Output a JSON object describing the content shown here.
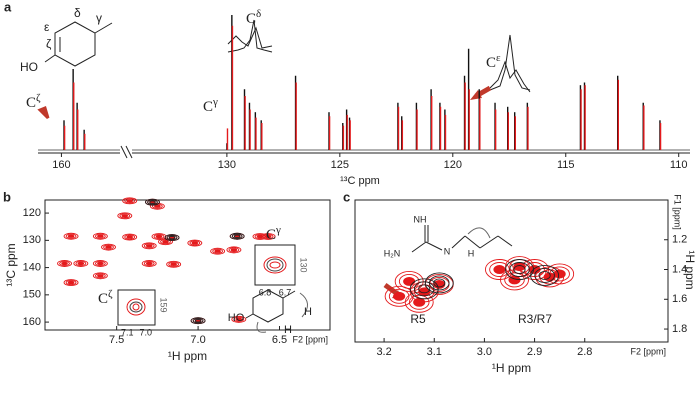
{
  "chart_data": [
    {
      "type": "spectrum",
      "panel": "a",
      "x_label": "¹³C ppm",
      "x_segments": [
        {
          "xlim": [
            161,
            157.5
          ],
          "xticks": [
            160
          ]
        },
        {
          "xlim": [
            134.2,
            109.5
          ],
          "xticks": [
            130,
            125,
            120,
            115,
            110
          ]
        }
      ],
      "ylim": [
        0,
        100
      ],
      "x": [
        159.89,
        159.5,
        159.33,
        159.03,
        130.0,
        129.78,
        129.22,
        129.0,
        128.74,
        128.48,
        126.96,
        125.48,
        124.87,
        124.7,
        124.57,
        122.43,
        122.26,
        121.61,
        120.96,
        120.57,
        120.35,
        119.48,
        119.3,
        118.83,
        118.13,
        117.57,
        117.26,
        116.7,
        114.35,
        114.17,
        112.7,
        111.57,
        110.83
      ],
      "series": [
        {
          "color": "#111111",
          "values": [
            22,
            60,
            35,
            15,
            5,
            100,
            45,
            35,
            28,
            22,
            55,
            28,
            20,
            30,
            24,
            35,
            25,
            35,
            45,
            35,
            30,
            55,
            75,
            45,
            35,
            32,
            28,
            35,
            48,
            50,
            55,
            35,
            22
          ]
        },
        {
          "color": "#e41a1c",
          "values": [
            18,
            50,
            30,
            12,
            16,
            92,
            40,
            30,
            24,
            20,
            50,
            25,
            18,
            26,
            22,
            32,
            22,
            30,
            40,
            32,
            26,
            50,
            45,
            38,
            30,
            28,
            25,
            32,
            45,
            48,
            52,
            33,
            20
          ]
        }
      ],
      "annotations": [
        {
          "base": "C",
          "sup": "δ"
        },
        {
          "base": "C",
          "sup": "γ"
        },
        {
          "base": "C",
          "sup": "ζ"
        },
        {
          "base": "C",
          "sup": "ε"
        }
      ],
      "structure_labels": [
        "ε",
        "δ",
        "γ",
        "ζ",
        "HO"
      ]
    },
    {
      "type": "contour",
      "panel": "b",
      "x_label": "¹H ppm",
      "y_label": "¹³C ppm",
      "x_unit_label": "F2 [ppm]",
      "xlim": [
        7.94,
        6.19
      ],
      "ylim": [
        115.2,
        162.9
      ],
      "xticks": [
        7.5,
        {
          "value": 7,
          "label": "7.0"
        },
        6.5
      ],
      "yticks": [
        120,
        130,
        140,
        150,
        160
      ],
      "series": [
        {
          "color": "#e41a1c",
          "x": [
            7.42,
            7.28,
            7.25,
            7.45,
            7.78,
            7.6,
            7.42,
            7.24,
            7.16,
            6.76,
            6.62,
            6.57,
            7.2,
            7.02,
            7.55,
            7.3,
            6.78,
            6.88,
            7.82,
            7.72,
            7.6,
            7.3,
            7.15,
            7.6,
            7.78,
            7.0,
            6.75
          ],
          "y": [
            115.5,
            116,
            117.5,
            121,
            128.5,
            128.5,
            128.8,
            128.6,
            129,
            128.5,
            128.6,
            128.6,
            130.5,
            131,
            132.5,
            132,
            133.5,
            134,
            138.5,
            138.5,
            138.5,
            138.5,
            138.8,
            143,
            145.5,
            159.5,
            159
          ]
        },
        {
          "color": "#222222",
          "x": [
            7.28,
            7.16,
            6.76,
            7.0
          ],
          "y": [
            116,
            129,
            128.5,
            159.5
          ]
        }
      ],
      "insets": [
        {
          "label": {
            "base": "C",
            "sup": "γ"
          },
          "xticks": [
            6.8,
            6.7
          ],
          "yticks": [
            130
          ]
        },
        {
          "label": {
            "base": "C",
            "sup": "ζ"
          },
          "xticks": [
            7.1,
            {
              "value": 7,
              "label": "7.0"
            }
          ],
          "yticks": [
            159
          ]
        }
      ],
      "annotations": [
        "HO",
        "H",
        "H"
      ]
    },
    {
      "type": "contour",
      "panel": "c",
      "x_label": "¹H ppm",
      "y_label": "¹H ppm",
      "x_unit_label": "F2 [ppm]",
      "y_unit_label": "F1 [ppm]",
      "xlim": [
        3.258,
        2.634
      ],
      "ylim": [
        0.933,
        1.887
      ],
      "xticks": [
        3.2,
        3.1,
        {
          "value": 3,
          "label": "3.0"
        },
        2.9,
        2.8
      ],
      "yticks": [
        1.2,
        1.4,
        1.6,
        1.8
      ],
      "series": [
        {
          "color": "#e41a1c",
          "x": [
            3.15,
            3.12,
            3.09,
            3.13,
            3.17,
            2.97,
            2.93,
            2.9,
            2.94,
            2.87,
            2.85
          ],
          "y": [
            1.48,
            1.55,
            1.5,
            1.62,
            1.58,
            1.4,
            1.38,
            1.4,
            1.47,
            1.45,
            1.43
          ]
        },
        {
          "color": "#222222",
          "x": [
            3.12,
            3.09,
            2.93,
            2.88
          ],
          "y": [
            1.53,
            1.49,
            1.4,
            1.44
          ]
        }
      ],
      "annotations": [
        "R5",
        "R3/R7",
        "NH",
        "H₂N",
        "N",
        "H"
      ]
    }
  ]
}
